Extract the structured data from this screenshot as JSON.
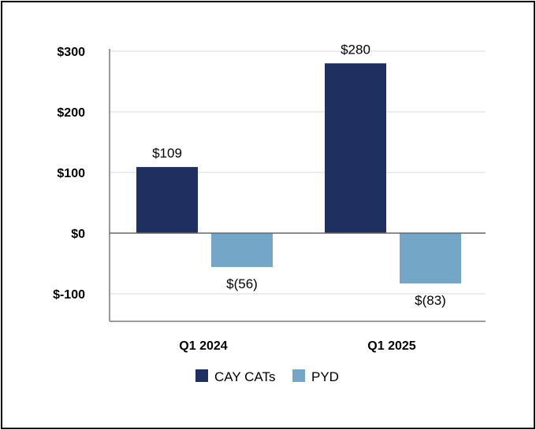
{
  "chart_data": {
    "type": "bar",
    "title": "",
    "xlabel": "",
    "ylabel": "",
    "categories": [
      "Q1 2024",
      "Q1 2025"
    ],
    "series": [
      {
        "name": "CAY CATs",
        "color": "#1f2f5f",
        "values": [
          109,
          280
        ],
        "labels": [
          "$109",
          "$280"
        ]
      },
      {
        "name": "PYD",
        "color": "#74a6c8",
        "values": [
          -56,
          -83
        ],
        "labels": [
          "$(56)",
          "$(83)"
        ]
      }
    ],
    "ylim": [
      -150,
      300
    ],
    "yticks": [
      300,
      200,
      100,
      0,
      -100
    ],
    "ytick_labels": [
      "$300",
      "$200",
      "$100",
      "$0",
      "$-100"
    ],
    "grid": true,
    "legend": "bottom-center"
  }
}
